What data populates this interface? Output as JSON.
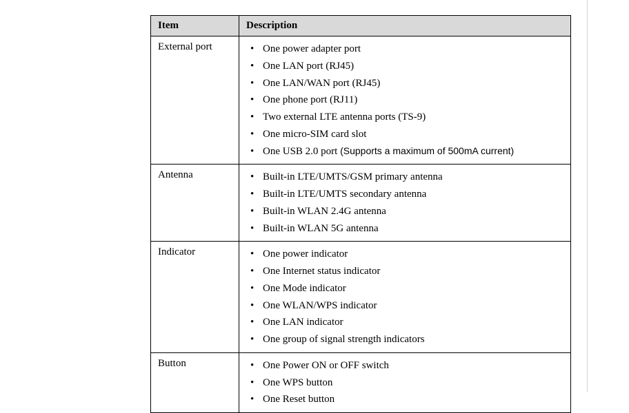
{
  "table": {
    "columns": [
      "Item",
      "Description"
    ],
    "header_bg": "#d9d9d9",
    "border_color": "#000000",
    "font_family_serif": "Times New Roman",
    "font_family_sans": "Arial",
    "rows": [
      {
        "item": "External port",
        "bullets": [
          {
            "text": "One power adapter port"
          },
          {
            "text": "One LAN port (RJ45)"
          },
          {
            "text": "One LAN/WAN port (RJ45)"
          },
          {
            "text": "One phone port (RJ11)"
          },
          {
            "text": "Two external LTE antenna ports (TS-9)"
          },
          {
            "text": "One micro-SIM card slot"
          },
          {
            "text": "One USB 2.0 port ",
            "note_sans": "(Supports a maximum of 500mA current)"
          }
        ]
      },
      {
        "item": "Antenna",
        "bullets": [
          {
            "text": "Built-in LTE/UMTS/GSM primary antenna"
          },
          {
            "text": "Built-in LTE/UMTS secondary antenna"
          },
          {
            "text": "Built-in WLAN 2.4G antenna"
          },
          {
            "text": "Built-in WLAN 5G antenna"
          }
        ]
      },
      {
        "item": "Indicator",
        "bullets": [
          {
            "text": "One power indicator"
          },
          {
            "text": "One Internet status indicator"
          },
          {
            "text": "One Mode indicator"
          },
          {
            "text": "One WLAN/WPS indicator"
          },
          {
            "text": "One LAN indicator"
          },
          {
            "text": "One group of signal strength indicators"
          }
        ]
      },
      {
        "item": "Button",
        "bullets": [
          {
            "text": "One Power ON or OFF switch"
          },
          {
            "text": "One WPS button"
          },
          {
            "text": "One Reset button"
          }
        ]
      }
    ]
  }
}
